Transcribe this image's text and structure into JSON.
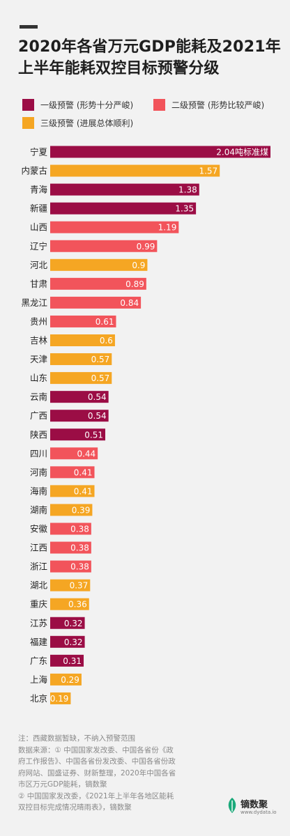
{
  "title": "2020年各省万元GDP能耗及2021年上半年能耗双控目标预警分级",
  "legend": [
    {
      "label": "一级预警 (形势十分严峻)",
      "color": "#9b0d45"
    },
    {
      "label": "二级预警 (形势比较严峻)",
      "color": "#f2545b"
    },
    {
      "label": "三级预警 (进展总体顺利)",
      "color": "#f5a623"
    }
  ],
  "chart_data": {
    "type": "bar",
    "orientation": "horizontal",
    "unit": "吨标准煤",
    "categories": [
      "宁夏",
      "内蒙古",
      "青海",
      "新疆",
      "山西",
      "辽宁",
      "河北",
      "甘肃",
      "黑龙江",
      "贵州",
      "吉林",
      "天津",
      "山东",
      "云南",
      "广西",
      "陕西",
      "四川",
      "河南",
      "海南",
      "湖南",
      "安徽",
      "江西",
      "浙江",
      "湖北",
      "重庆",
      "江苏",
      "福建",
      "广东",
      "上海",
      "北京"
    ],
    "values": [
      2.04,
      1.57,
      1.38,
      1.35,
      1.19,
      0.99,
      0.9,
      0.89,
      0.84,
      0.61,
      0.6,
      0.57,
      0.57,
      0.54,
      0.54,
      0.51,
      0.44,
      0.41,
      0.41,
      0.39,
      0.38,
      0.38,
      0.38,
      0.37,
      0.36,
      0.32,
      0.32,
      0.31,
      0.29,
      0.19
    ],
    "value_labels": [
      "2.04吨标准煤",
      "1.57",
      "1.38",
      "1.35",
      "1.19",
      "0.99",
      "0.9",
      "0.89",
      "0.84",
      "0.61",
      "0.6",
      "0.57",
      "0.57",
      "0.54",
      "0.54",
      "0.51",
      "0.44",
      "0.41",
      "0.41",
      "0.39",
      "0.38",
      "0.38",
      "0.38",
      "0.37",
      "0.36",
      "0.32",
      "0.32",
      "0.31",
      "0.29",
      "0.19"
    ],
    "levels": [
      1,
      3,
      1,
      1,
      2,
      2,
      3,
      2,
      2,
      2,
      3,
      3,
      3,
      1,
      1,
      1,
      2,
      2,
      3,
      3,
      2,
      2,
      2,
      3,
      3,
      1,
      1,
      1,
      3,
      3
    ],
    "xlim": [
      0,
      2.04
    ]
  },
  "notes": [
    "注：西藏数据暂缺，不纳入预警范围",
    "数据来源：① 中国国家发改委、中国各省份《政",
    "府工作报告》、中国各省份发改委、中国各省份政",
    "府网站、国盛证券、财新整理，2020年中国各省",
    "市区万元GDP能耗，镝数聚",
    "② 中国国家发改委，《2021年上半年各地区能耗",
    "双控目标完成情况晴雨表》，镝数聚"
  ],
  "brand": {
    "name": "镝数聚",
    "url": "www.dydata.io"
  }
}
